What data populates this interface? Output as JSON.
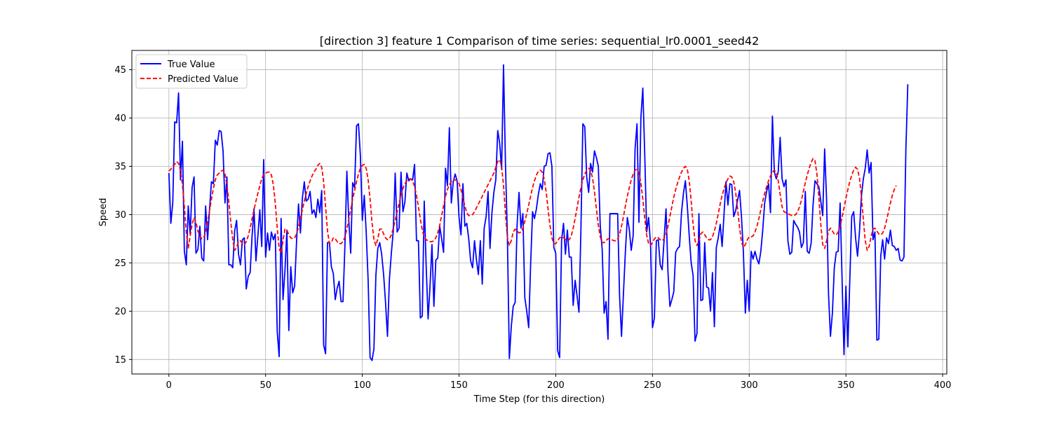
{
  "chart_data": {
    "type": "line",
    "title": "[direction 3] feature 1 Comparison of time series: sequential_lr0.0001_seed42",
    "xlabel": "Time Step (for this direction)",
    "ylabel": "Speed",
    "xlim": [
      -19.15,
      402.15
    ],
    "ylim": [
      13.5,
      47.0
    ],
    "xticks": [
      0,
      50,
      100,
      150,
      200,
      250,
      300,
      350,
      400
    ],
    "yticks": [
      15,
      20,
      25,
      30,
      35,
      40,
      45
    ],
    "xtick_labels": [
      "0",
      "50",
      "100",
      "150",
      "200",
      "250",
      "300",
      "350",
      "400"
    ],
    "ytick_labels": [
      "15",
      "20",
      "25",
      "30",
      "35",
      "40",
      "45"
    ],
    "grid": true,
    "legend_position": "top-left",
    "colors": {
      "true": "#0000ff",
      "predicted": "#ff0000"
    },
    "series": [
      {
        "name": "True Value",
        "style": "solid",
        "x_start": 0,
        "values": [
          34.3,
          29.1,
          31.2,
          39.6,
          39.5,
          42.6,
          33.6,
          37.6,
          26.2,
          24.8,
          30.9,
          28.0,
          32.8,
          33.9,
          26.0,
          26.4,
          28.8,
          25.5,
          25.2,
          30.9,
          27.4,
          30.5,
          33.4,
          33.2,
          37.7,
          37.2,
          38.7,
          38.6,
          36.6,
          31.2,
          33.9,
          24.8,
          24.8,
          24.5,
          28.3,
          29.4,
          25.9,
          24.8,
          27.4,
          27.6,
          22.3,
          23.6,
          24.0,
          27.8,
          30.6,
          25.2,
          27.8,
          30.5,
          26.7,
          35.7,
          25.6,
          28.1,
          26.3,
          28.2,
          27.4,
          28.0,
          17.9,
          15.3,
          29.6,
          21.2,
          24.2,
          28.4,
          18.0,
          24.6,
          21.9,
          22.6,
          27.2,
          31.1,
          28.1,
          31.7,
          33.4,
          31.4,
          31.6,
          32.4,
          30.1,
          30.5,
          29.7,
          31.6,
          30.2,
          32.5,
          16.5,
          15.6,
          27.1,
          27.1,
          24.6,
          23.9,
          21.2,
          22.4,
          23.1,
          21.0,
          21.0,
          26.8,
          34.5,
          29.4,
          26.0,
          33.3,
          32.8,
          39.2,
          39.4,
          36.1,
          29.4,
          32.0,
          28.2,
          23.2,
          15.2,
          14.9,
          16.1,
          23.7,
          26.5,
          27.1,
          25.9,
          23.8,
          20.9,
          17.4,
          23.3,
          26.0,
          28.3,
          34.3,
          28.2,
          28.6,
          34.4,
          30.3,
          31.3,
          34.3,
          33.5,
          33.7,
          33.6,
          35.2,
          27.3,
          27.3,
          19.3,
          19.5,
          31.4,
          24.7,
          19.2,
          22.6,
          26.9,
          20.5,
          25.3,
          25.5,
          28.8,
          27.5,
          26.1,
          34.8,
          33.0,
          39.0,
          31.2,
          33.4,
          34.2,
          33.5,
          29.7,
          27.9,
          33.2,
          28.8,
          29.1,
          27.5,
          25.2,
          24.5,
          27.3,
          25.3,
          23.8,
          27.3,
          22.8,
          28.6,
          29.8,
          32.4,
          26.5,
          30.2,
          32.3,
          33.6,
          38.7,
          37.4,
          34.7,
          45.5,
          35.2,
          27.7,
          15.1,
          18.4,
          20.5,
          20.9,
          28.9,
          32.3,
          28.6,
          30.1,
          21.4,
          20.0,
          18.3,
          24.8,
          30.3,
          29.6,
          30.6,
          32.1,
          33.2,
          32.6,
          35.0,
          35.1,
          36.3,
          36.4,
          35.0,
          26.6,
          26.0,
          15.9,
          15.2,
          27.3,
          29.1,
          25.9,
          28.4,
          25.6,
          25.6,
          20.6,
          23.2,
          21.6,
          19.9,
          28.4,
          39.4,
          39.1,
          33.9,
          32.3,
          35.3,
          34.4,
          36.6,
          35.9,
          35.0,
          28.8,
          26.4,
          19.8,
          21.0,
          17.1,
          30.1,
          30.1,
          30.1,
          30.1,
          30.1,
          21.5,
          17.4,
          21.9,
          26.2,
          29.7,
          28.5,
          26.3,
          27.8,
          36.8,
          39.4,
          29.2,
          40.0,
          43.1,
          36.2,
          28.2,
          29.7,
          26.9,
          18.3,
          19.3,
          27.3,
          27.4,
          24.8,
          24.3,
          27.4,
          30.6,
          24.1,
          20.5,
          21.2,
          22.0,
          26.1,
          26.5,
          26.7,
          30.2,
          32.2,
          33.5,
          30.9,
          27.8,
          25.0,
          23.7,
          16.9,
          17.7,
          30.1,
          21.1,
          21.2,
          27.1,
          22.5,
          22.4,
          20.0,
          24.0,
          18.4,
          26.6,
          27.6,
          29.0,
          26.7,
          30.1,
          33.4,
          31.0,
          33.2,
          33.1,
          29.8,
          30.4,
          31.5,
          32.5,
          29.8,
          26.1,
          19.8,
          23.2,
          20.0,
          26.2,
          25.4,
          26.2,
          25.4,
          24.9,
          26.2,
          28.4,
          31.2,
          32.4,
          33.2,
          30.2,
          40.2,
          34.4,
          33.7,
          34.4,
          38.0,
          33.7,
          32.9,
          33.6,
          27.3,
          25.9,
          26.1,
          29.4,
          29.0,
          28.7,
          28.2,
          26.6,
          27.1,
          32.4,
          26.2,
          26.0,
          27.0,
          31.0,
          33.5,
          33.2,
          32.9,
          31.4,
          29.9,
          36.8,
          31.6,
          21.8,
          17.4,
          19.8,
          24.5,
          26.1,
          26.2,
          31.2,
          23.4,
          15.5,
          22.6,
          16.3,
          23.2,
          29.8,
          30.3,
          27.6,
          25.7,
          28.2,
          31.9,
          33.7,
          34.8,
          36.7,
          34.3,
          35.4,
          27.4,
          28.2,
          17.0,
          17.1,
          25.7,
          27.4,
          25.4,
          27.6,
          27.0,
          28.4,
          26.8,
          26.7,
          26.3,
          26.5,
          25.3,
          25.2,
          25.6,
          36.8,
          43.5
        ]
      },
      {
        "name": "Predicted Value",
        "style": "dashed",
        "x_start": 0,
        "values": [
          34.5,
          34.7,
          35.0,
          35.2,
          35.5,
          35.3,
          34.6,
          33.1,
          30.8,
          28.2,
          26.5,
          27.8,
          29.0,
          29.7,
          29.2,
          28.3,
          27.8,
          27.5,
          27.6,
          28.2,
          29.2,
          30.4,
          31.6,
          32.7,
          33.6,
          34.1,
          34.3,
          34.5,
          34.6,
          34.2,
          33.1,
          31.3,
          29.2,
          27.4,
          26.3,
          26.6,
          27.2,
          27.3,
          27.0,
          26.9,
          27.2,
          27.8,
          28.6,
          29.6,
          30.5,
          31.4,
          32.2,
          33.0,
          33.7,
          34.2,
          34.3,
          34.4,
          34.4,
          34.1,
          33.1,
          31.2,
          28.6,
          26.5,
          26.0,
          27.3,
          28.5,
          28.4,
          27.9,
          27.6,
          27.5,
          27.6,
          28.0,
          28.7,
          29.6,
          30.5,
          31.4,
          32.2,
          32.9,
          33.5,
          34.0,
          34.4,
          34.7,
          35.1,
          35.3,
          34.9,
          33.4,
          30.8,
          28.3,
          27.0,
          27.1,
          27.6,
          27.5,
          27.2,
          27.0,
          27.0,
          27.2,
          27.7,
          28.5,
          29.5,
          30.5,
          31.6,
          32.5,
          33.4,
          34.2,
          34.8,
          35.1,
          35.2,
          34.8,
          33.6,
          31.6,
          29.2,
          27.4,
          26.8,
          27.5,
          28.5,
          28.5,
          28.0,
          27.6,
          27.4,
          27.5,
          27.9,
          28.6,
          29.4,
          30.3,
          31.2,
          32.0,
          32.7,
          33.2,
          33.5,
          33.7,
          33.7,
          33.5,
          32.9,
          32.0,
          30.8,
          29.5,
          28.4,
          27.7,
          27.4,
          27.3,
          27.2,
          27.2,
          27.3,
          27.6,
          28.1,
          28.9,
          29.9,
          30.9,
          31.9,
          32.6,
          33.1,
          33.4,
          33.6,
          33.6,
          33.5,
          33.2,
          32.6,
          31.7,
          30.9,
          30.2,
          29.9,
          29.9,
          30.0,
          30.3,
          30.7,
          31.1,
          31.5,
          31.9,
          32.3,
          32.7,
          33.1,
          33.5,
          33.9,
          34.3,
          34.9,
          35.5,
          35.7,
          35.0,
          33.0,
          30.1,
          27.6,
          26.8,
          27.3,
          28.2,
          28.5,
          28.3,
          28.1,
          28.2,
          28.6,
          29.3,
          30.1,
          31.0,
          31.9,
          32.8,
          33.5,
          34.1,
          34.5,
          34.6,
          34.4,
          33.7,
          32.4,
          30.6,
          28.9,
          27.6,
          27.0,
          27.0,
          27.3,
          27.6,
          27.7,
          27.6,
          27.4,
          27.3,
          27.4,
          27.8,
          28.6,
          29.6,
          30.7,
          31.8,
          32.8,
          33.6,
          34.2,
          34.6,
          34.8,
          34.6,
          33.8,
          32.4,
          30.6,
          28.9,
          27.7,
          27.1,
          27.1,
          27.3,
          27.5,
          27.5,
          27.4,
          27.3,
          27.3,
          27.5,
          28.0,
          28.8,
          29.8,
          30.9,
          31.9,
          32.8,
          33.6,
          34.2,
          34.6,
          34.7,
          34.3,
          33.3,
          31.6,
          29.6,
          27.9,
          27.0,
          26.8,
          27.1,
          27.5,
          27.7,
          27.6,
          27.4,
          27.3,
          27.5,
          28.0,
          28.8,
          29.8,
          30.8,
          31.8,
          32.6,
          33.3,
          33.9,
          34.4,
          34.8,
          35.0,
          34.7,
          33.5,
          31.4,
          29.0,
          27.3,
          26.8,
          27.3,
          28.0,
          28.2,
          27.9,
          27.6,
          27.4,
          27.4,
          27.7,
          28.3,
          29.1,
          30.1,
          31.1,
          32.0,
          32.7,
          33.3,
          33.7,
          34.0,
          33.9,
          33.4,
          32.3,
          30.6,
          28.7,
          27.2,
          26.6,
          26.9,
          27.4,
          27.7,
          27.7,
          27.8,
          28.2,
          28.8,
          29.6,
          30.5,
          31.4,
          32.2,
          32.9,
          33.5,
          34.0,
          34.4,
          34.6,
          34.4,
          33.5,
          32.1,
          30.8,
          30.3,
          30.2,
          30.1,
          30.0,
          29.9,
          29.9,
          30.0,
          30.3,
          30.8,
          31.5,
          32.4,
          33.3,
          34.1,
          34.8,
          35.4,
          35.8,
          35.6,
          34.2,
          31.8,
          29.0,
          26.9,
          26.5,
          27.3,
          28.3,
          28.6,
          28.3,
          28.0,
          27.9,
          28.2,
          28.8,
          29.7,
          30.7,
          31.7,
          32.6,
          33.4,
          34.1,
          34.6,
          34.9,
          34.7,
          33.8,
          31.9,
          29.5,
          27.3,
          26.3,
          26.7,
          27.7,
          28.5,
          28.6,
          28.3,
          28.0,
          27.9,
          28.1,
          28.6,
          29.4,
          30.3,
          31.2,
          32.0,
          32.6,
          33.0
        ]
      }
    ]
  }
}
